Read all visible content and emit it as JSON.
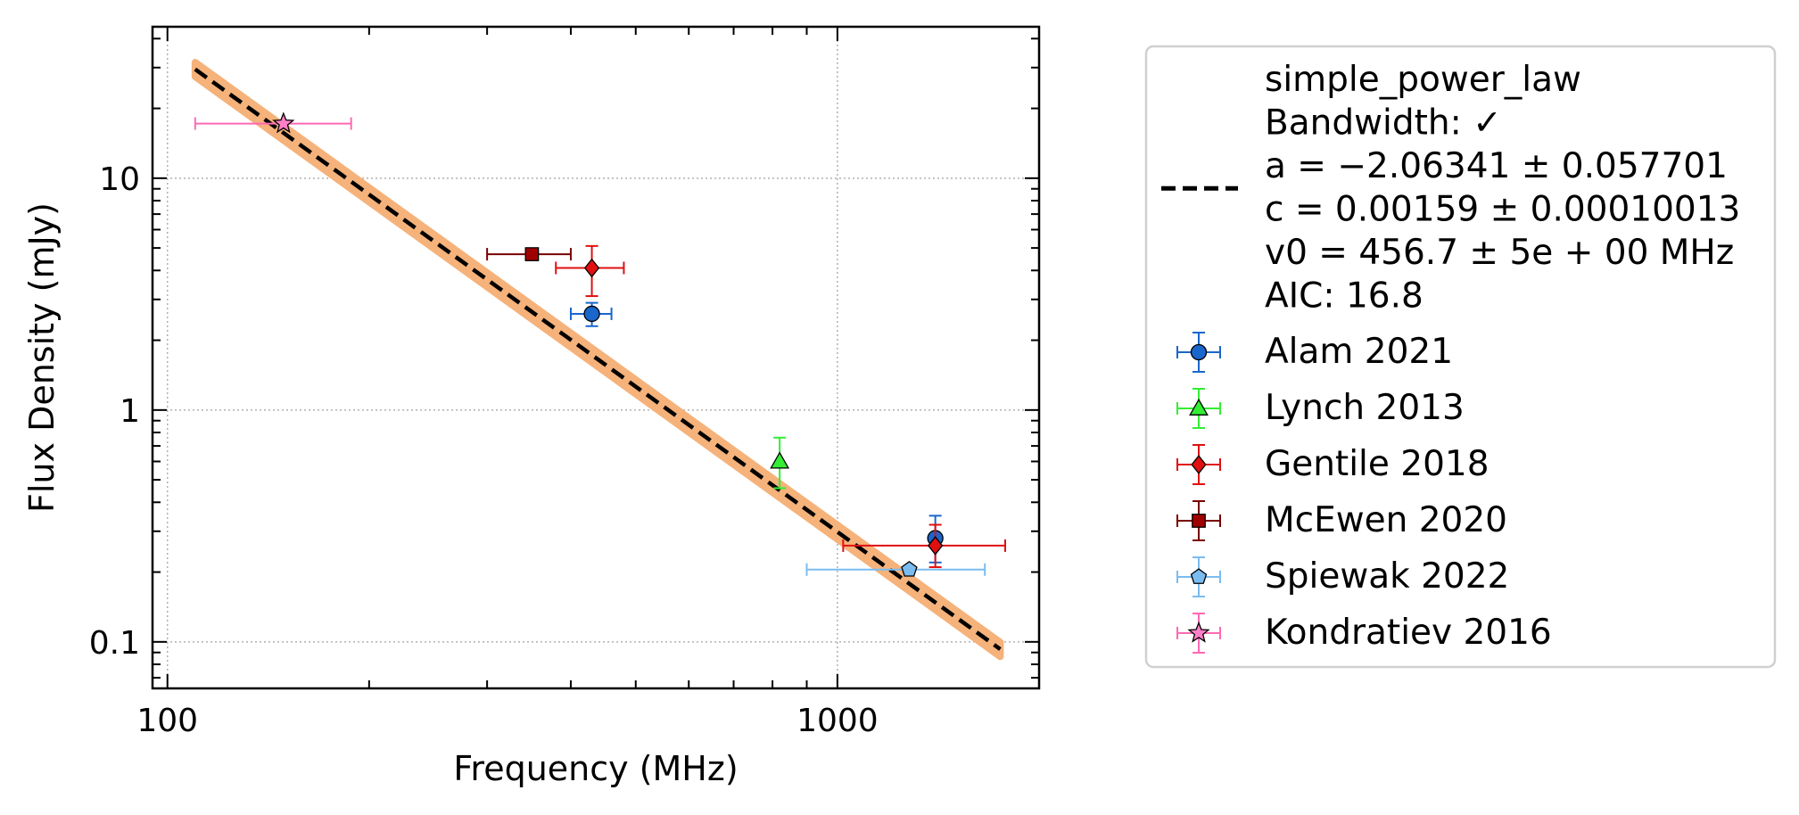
{
  "chart_data": {
    "type": "scatter",
    "title": "",
    "xlabel": "Frequency (MHz)",
    "ylabel": "Flux Density (mJy)",
    "xscale": "log",
    "yscale": "log",
    "xlim": [
      95,
      2000
    ],
    "ylim": [
      0.063,
      45
    ],
    "xticks": [
      {
        "value": 100,
        "label": "100"
      },
      {
        "value": 1000,
        "label": "1000"
      }
    ],
    "yticks": [
      {
        "value": 0.1,
        "label": "0.1"
      },
      {
        "value": 1,
        "label": "1"
      },
      {
        "value": 10,
        "label": "10"
      }
    ],
    "grid": true,
    "legend_position": "outside-right",
    "model": {
      "name": "simple_power_law",
      "legend_lines": [
        "simple_power_law",
        "Bandwidth: ✓",
        "a = −2.06341 ± 0.057701",
        "c = 0.00159 ± 0.00010013",
        "v0 = 456.7 ± 5e + 00 MHz",
        "AIC: 16.8"
      ],
      "a": -2.06341,
      "c": 0.00159,
      "v0": 456.7,
      "fit_line": [
        [
          110,
          29.5
        ],
        [
          1750,
          0.093
        ]
      ],
      "band_lower_factor": 0.93,
      "band_upper_factor": 1.07,
      "line_color": "#000000",
      "band_color": "#f5b27a"
    },
    "series": [
      {
        "name": "Alam 2021",
        "marker": "circle",
        "color": "#1a66cc",
        "ecolor": "#1a66cc",
        "points": [
          {
            "x": 430,
            "y": 2.6,
            "xerr": [
              30,
              30
            ],
            "yerr": [
              0.3,
              0.3
            ]
          },
          {
            "x": 1400,
            "y": 0.28,
            "xerr": [
              0,
              0
            ],
            "yerr": [
              0.06,
              0.07
            ]
          }
        ]
      },
      {
        "name": "Lynch 2013",
        "marker": "triangle",
        "color": "#33ee33",
        "ecolor": "#33ee33",
        "points": [
          {
            "x": 820,
            "y": 0.6,
            "xerr": [
              0,
              0
            ],
            "yerr": [
              0.14,
              0.16
            ]
          }
        ]
      },
      {
        "name": "Gentile 2018",
        "marker": "diamond",
        "color": "#e01010",
        "ecolor": "#e01010",
        "points": [
          {
            "x": 430,
            "y": 4.1,
            "xerr": [
              50,
              50
            ],
            "yerr": [
              1.0,
              1.0
            ]
          },
          {
            "x": 1400,
            "y": 0.26,
            "xerr": [
              380,
              380
            ],
            "yerr": [
              0.05,
              0.06
            ]
          }
        ]
      },
      {
        "name": "McEwen 2020",
        "marker": "square",
        "color": "#a00000",
        "ecolor": "#7a0000",
        "points": [
          {
            "x": 350,
            "y": 4.7,
            "xerr": [
              50,
              50
            ],
            "yerr": [
              0.15,
              0.15
            ]
          }
        ]
      },
      {
        "name": "Spiewak 2022",
        "marker": "pentagon",
        "color": "#7bbcf0",
        "ecolor": "#7bbcf0",
        "points": [
          {
            "x": 1280,
            "y": 0.205,
            "xerr": [
              380,
              380
            ],
            "yerr": [
              0,
              0
            ]
          }
        ]
      },
      {
        "name": "Kondratiev 2016",
        "marker": "star",
        "color": "#ff80c8",
        "ecolor": "#ff69b4",
        "points": [
          {
            "x": 149,
            "y": 17.2,
            "xerr": [
              39,
              39
            ],
            "yerr": [
              0,
              0
            ]
          }
        ]
      }
    ]
  }
}
